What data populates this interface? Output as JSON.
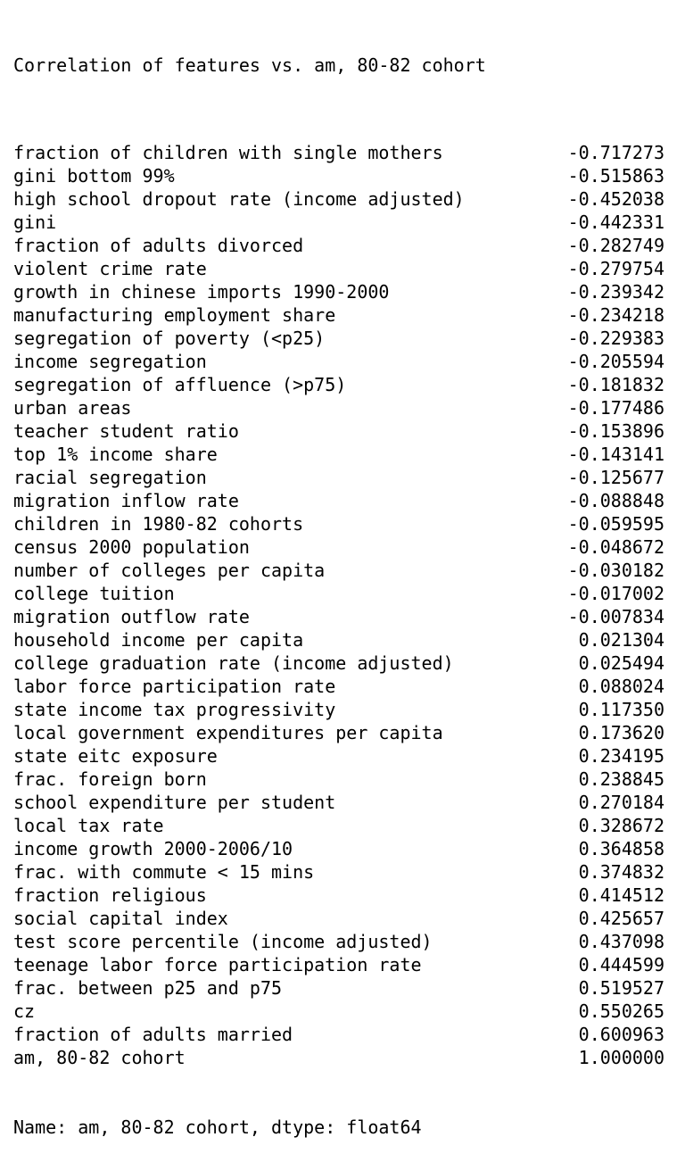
{
  "output": {
    "title": "Correlation of features vs. am, 80-82 cohort",
    "rows": [
      {
        "label": "fraction of children with single mothers",
        "value": "-0.717273"
      },
      {
        "label": "gini bottom 99%",
        "value": "-0.515863"
      },
      {
        "label": "high school dropout rate (income adjusted)",
        "value": "-0.452038"
      },
      {
        "label": "gini",
        "value": "-0.442331"
      },
      {
        "label": "fraction of adults divorced",
        "value": "-0.282749"
      },
      {
        "label": "violent crime rate",
        "value": "-0.279754"
      },
      {
        "label": "growth in chinese imports 1990-2000",
        "value": "-0.239342"
      },
      {
        "label": "manufacturing employment share",
        "value": "-0.234218"
      },
      {
        "label": "segregation of poverty (<p25)",
        "value": "-0.229383"
      },
      {
        "label": "income segregation",
        "value": "-0.205594"
      },
      {
        "label": "segregation of affluence (>p75)",
        "value": "-0.181832"
      },
      {
        "label": "urban areas",
        "value": "-0.177486"
      },
      {
        "label": "teacher student ratio",
        "value": "-0.153896"
      },
      {
        "label": "top 1% income share",
        "value": "-0.143141"
      },
      {
        "label": "racial segregation",
        "value": "-0.125677"
      },
      {
        "label": "migration inflow rate",
        "value": "-0.088848"
      },
      {
        "label": "children in 1980-82 cohorts",
        "value": "-0.059595"
      },
      {
        "label": "census 2000 population",
        "value": "-0.048672"
      },
      {
        "label": "number of colleges per capita",
        "value": "-0.030182"
      },
      {
        "label": "college tuition",
        "value": "-0.017002"
      },
      {
        "label": "migration outflow rate",
        "value": "-0.007834"
      },
      {
        "label": "household income per capita",
        "value": "0.021304"
      },
      {
        "label": "college graduation rate (income adjusted)",
        "value": "0.025494"
      },
      {
        "label": "labor force participation rate",
        "value": "0.088024"
      },
      {
        "label": "state income tax progressivity",
        "value": "0.117350"
      },
      {
        "label": "local government expenditures per capita",
        "value": "0.173620"
      },
      {
        "label": "state eitc exposure",
        "value": "0.234195"
      },
      {
        "label": "frac. foreign born",
        "value": "0.238845"
      },
      {
        "label": "school expenditure per student",
        "value": "0.270184"
      },
      {
        "label": "local tax rate",
        "value": "0.328672"
      },
      {
        "label": "income growth 2000-2006/10",
        "value": "0.364858"
      },
      {
        "label": "frac. with commute < 15 mins",
        "value": "0.374832"
      },
      {
        "label": "fraction religious",
        "value": "0.414512"
      },
      {
        "label": "social capital index",
        "value": "0.425657"
      },
      {
        "label": "test score percentile (income adjusted)",
        "value": "0.437098"
      },
      {
        "label": "teenage labor force participation rate",
        "value": "0.444599"
      },
      {
        "label": "frac. between p25 and p75",
        "value": "0.519527"
      },
      {
        "label": "cz",
        "value": "0.550265"
      },
      {
        "label": "fraction of adults married",
        "value": "0.600963"
      },
      {
        "label": "am, 80-82 cohort",
        "value": "1.000000"
      }
    ],
    "footer": "Name: am, 80-82 cohort, dtype: float64"
  }
}
